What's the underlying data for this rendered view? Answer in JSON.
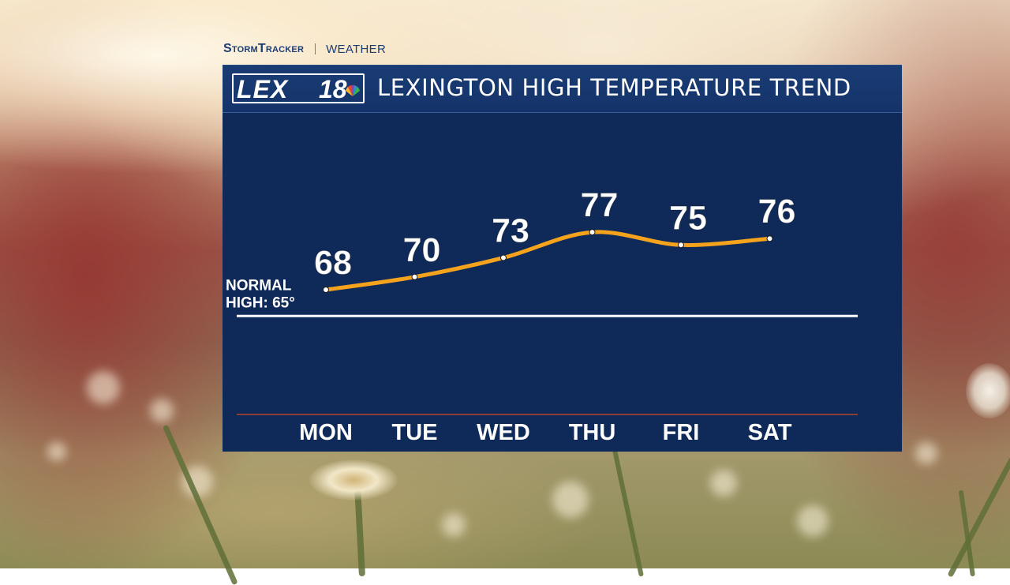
{
  "brand": {
    "storm_label": "StormTracker",
    "weather_label": "WEATHER"
  },
  "logo": {
    "lex": "LEX",
    "number": "18",
    "icon": "nbc-peacock-icon"
  },
  "title": "LEXINGTON HIGH TEMPERATURE TREND",
  "colors": {
    "panel": "#0f2a59",
    "line": "#f5a31d",
    "accent_line": "#b3452c"
  },
  "chart_data": {
    "type": "line",
    "title": "LEXINGTON HIGH TEMPERATURE TREND",
    "categories": [
      "MON",
      "TUE",
      "WED",
      "THU",
      "FRI",
      "SAT"
    ],
    "values": [
      68,
      70,
      73,
      77,
      75,
      76
    ],
    "value_labels": [
      "68",
      "70",
      "73",
      "77",
      "75",
      "76"
    ],
    "reference_line": {
      "value": 65,
      "label_lines": [
        "NORMAL",
        "HIGH: 65°"
      ]
    },
    "grid": false,
    "legend": "none"
  }
}
